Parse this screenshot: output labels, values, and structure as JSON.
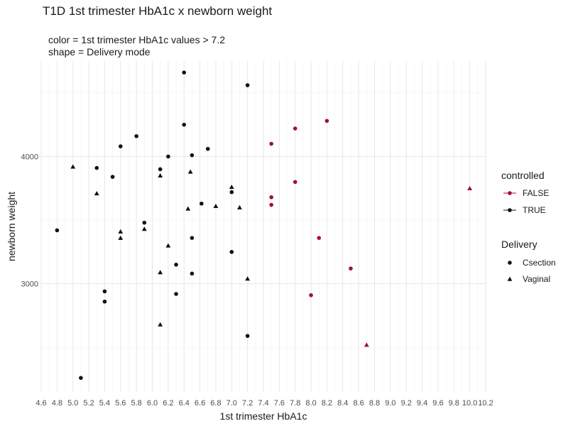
{
  "chart_data": {
    "type": "scatter",
    "title": "T1D 1st trimester HbA1c x newborn weight",
    "subtitle_lines": [
      "color = 1st trimester HbA1c values > 7.2",
      "shape = Delivery mode"
    ],
    "xlabel": "1st trimester HbA1c",
    "ylabel": "newborn weight",
    "xlim": [
      4.6,
      10.2
    ],
    "ylim": [
      2150,
      4750
    ],
    "x_ticks": [
      "4.6",
      "4.8",
      "5.0",
      "5.2",
      "5.4",
      "5.6",
      "5.8",
      "6.0",
      "6.2",
      "6.4",
      "6.6",
      "6.8",
      "7.0",
      "7.2",
      "7.4",
      "7.6",
      "7.8",
      "8.0",
      "8.2",
      "8.4",
      "8.6",
      "8.8",
      "9.0",
      "9.2",
      "9.4",
      "9.6",
      "9.8",
      "10.0",
      "10.2"
    ],
    "y_ticks": [
      3000,
      4000
    ],
    "grid": true,
    "legend_position": "right",
    "legends": [
      {
        "title": "controlled",
        "kind": "color",
        "entries": [
          {
            "label": "FALSE",
            "color": "#a50f2d"
          },
          {
            "label": "TRUE",
            "color": "#111111"
          }
        ]
      },
      {
        "title": "Delivery",
        "kind": "shape",
        "entries": [
          {
            "label": "Csection",
            "shape": "circle"
          },
          {
            "label": "Vaginal",
            "shape": "triangle"
          }
        ]
      }
    ],
    "colors": {
      "FALSE": "#a50f2d",
      "TRUE": "#111111"
    },
    "points": [
      {
        "x": 4.8,
        "y": 3420,
        "controlled": "TRUE",
        "delivery": "Csection"
      },
      {
        "x": 5.0,
        "y": 3920,
        "controlled": "TRUE",
        "delivery": "Vaginal"
      },
      {
        "x": 5.1,
        "y": 2260,
        "controlled": "TRUE",
        "delivery": "Csection"
      },
      {
        "x": 5.3,
        "y": 3910,
        "controlled": "TRUE",
        "delivery": "Csection"
      },
      {
        "x": 5.3,
        "y": 3710,
        "controlled": "TRUE",
        "delivery": "Vaginal"
      },
      {
        "x": 5.4,
        "y": 2940,
        "controlled": "TRUE",
        "delivery": "Csection"
      },
      {
        "x": 5.4,
        "y": 2860,
        "controlled": "TRUE",
        "delivery": "Csection"
      },
      {
        "x": 5.5,
        "y": 3840,
        "controlled": "TRUE",
        "delivery": "Csection"
      },
      {
        "x": 5.6,
        "y": 4080,
        "controlled": "TRUE",
        "delivery": "Csection"
      },
      {
        "x": 5.6,
        "y": 3410,
        "controlled": "TRUE",
        "delivery": "Vaginal"
      },
      {
        "x": 5.6,
        "y": 3360,
        "controlled": "TRUE",
        "delivery": "Vaginal"
      },
      {
        "x": 5.8,
        "y": 4160,
        "controlled": "TRUE",
        "delivery": "Csection"
      },
      {
        "x": 5.9,
        "y": 3480,
        "controlled": "TRUE",
        "delivery": "Csection"
      },
      {
        "x": 5.9,
        "y": 3430,
        "controlled": "TRUE",
        "delivery": "Vaginal"
      },
      {
        "x": 6.1,
        "y": 3900,
        "controlled": "TRUE",
        "delivery": "Csection"
      },
      {
        "x": 6.1,
        "y": 3850,
        "controlled": "TRUE",
        "delivery": "Vaginal"
      },
      {
        "x": 6.1,
        "y": 3090,
        "controlled": "TRUE",
        "delivery": "Vaginal"
      },
      {
        "x": 6.1,
        "y": 2680,
        "controlled": "TRUE",
        "delivery": "Vaginal"
      },
      {
        "x": 6.2,
        "y": 4000,
        "controlled": "TRUE",
        "delivery": "Csection"
      },
      {
        "x": 6.2,
        "y": 3300,
        "controlled": "TRUE",
        "delivery": "Vaginal"
      },
      {
        "x": 6.3,
        "y": 3150,
        "controlled": "TRUE",
        "delivery": "Csection"
      },
      {
        "x": 6.3,
        "y": 2920,
        "controlled": "TRUE",
        "delivery": "Csection"
      },
      {
        "x": 6.4,
        "y": 4660,
        "controlled": "TRUE",
        "delivery": "Csection"
      },
      {
        "x": 6.4,
        "y": 4250,
        "controlled": "TRUE",
        "delivery": "Csection"
      },
      {
        "x": 6.45,
        "y": 3590,
        "controlled": "TRUE",
        "delivery": "Vaginal"
      },
      {
        "x": 6.48,
        "y": 3880,
        "controlled": "TRUE",
        "delivery": "Vaginal"
      },
      {
        "x": 6.5,
        "y": 4010,
        "controlled": "TRUE",
        "delivery": "Csection"
      },
      {
        "x": 6.5,
        "y": 3360,
        "controlled": "TRUE",
        "delivery": "Csection"
      },
      {
        "x": 6.5,
        "y": 3080,
        "controlled": "TRUE",
        "delivery": "Csection"
      },
      {
        "x": 6.62,
        "y": 3630,
        "controlled": "TRUE",
        "delivery": "Csection"
      },
      {
        "x": 6.7,
        "y": 4060,
        "controlled": "TRUE",
        "delivery": "Csection"
      },
      {
        "x": 6.8,
        "y": 3610,
        "controlled": "TRUE",
        "delivery": "Vaginal"
      },
      {
        "x": 7.0,
        "y": 3760,
        "controlled": "TRUE",
        "delivery": "Vaginal"
      },
      {
        "x": 7.0,
        "y": 3720,
        "controlled": "TRUE",
        "delivery": "Csection"
      },
      {
        "x": 7.0,
        "y": 3250,
        "controlled": "TRUE",
        "delivery": "Csection"
      },
      {
        "x": 7.1,
        "y": 3600,
        "controlled": "TRUE",
        "delivery": "Vaginal"
      },
      {
        "x": 7.2,
        "y": 4560,
        "controlled": "TRUE",
        "delivery": "Csection"
      },
      {
        "x": 7.2,
        "y": 3040,
        "controlled": "TRUE",
        "delivery": "Vaginal"
      },
      {
        "x": 7.2,
        "y": 2590,
        "controlled": "TRUE",
        "delivery": "Csection"
      },
      {
        "x": 7.5,
        "y": 4100,
        "controlled": "FALSE",
        "delivery": "Csection"
      },
      {
        "x": 7.5,
        "y": 3680,
        "controlled": "FALSE",
        "delivery": "Csection"
      },
      {
        "x": 7.5,
        "y": 3620,
        "controlled": "FALSE",
        "delivery": "Csection"
      },
      {
        "x": 7.8,
        "y": 4220,
        "controlled": "FALSE",
        "delivery": "Csection"
      },
      {
        "x": 7.8,
        "y": 3800,
        "controlled": "FALSE",
        "delivery": "Csection"
      },
      {
        "x": 8.0,
        "y": 2910,
        "controlled": "FALSE",
        "delivery": "Csection"
      },
      {
        "x": 8.1,
        "y": 3360,
        "controlled": "FALSE",
        "delivery": "Csection"
      },
      {
        "x": 8.2,
        "y": 4280,
        "controlled": "FALSE",
        "delivery": "Csection"
      },
      {
        "x": 8.5,
        "y": 3120,
        "controlled": "FALSE",
        "delivery": "Csection"
      },
      {
        "x": 8.7,
        "y": 2520,
        "controlled": "FALSE",
        "delivery": "Vaginal"
      },
      {
        "x": 10.0,
        "y": 3750,
        "controlled": "FALSE",
        "delivery": "Vaginal"
      }
    ]
  }
}
